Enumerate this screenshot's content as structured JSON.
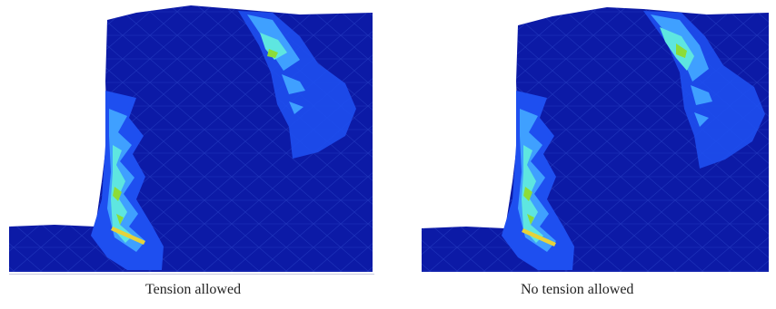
{
  "figure": {
    "panels": [
      {
        "caption": "Tension allowed"
      },
      {
        "caption": "No tension allowed"
      }
    ]
  },
  "colors": {
    "background_mesh": "#0c1aa6",
    "mesh_lines": "#2a44c8",
    "contour_low": "#1e4ff0",
    "contour_mid": "#3fa0ff",
    "contour_high": "#5ee6e0",
    "contour_peak": "#8ddc38",
    "contour_max": "#e6d23a"
  }
}
